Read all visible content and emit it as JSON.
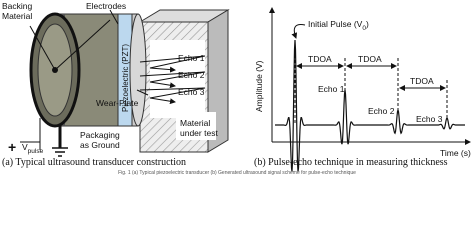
{
  "panel_a": {
    "backing_material": [
      "Backing",
      "Material"
    ],
    "electrodes": "Electrodes",
    "piezoelectric": "Piezoelectric (PZT)",
    "wear_plate": "Wear-Plate",
    "echoes": [
      "Echo 1",
      "Echo 2",
      "Echo 3"
    ],
    "material": [
      "Material",
      "under test"
    ],
    "plus": "+",
    "v_pulse": {
      "symbol": "V",
      "subscript": "pulse"
    },
    "packaging": [
      "Packaging",
      "as Ground"
    ],
    "caption": "(a)  Typical ultrasound transducer construction"
  },
  "panel_b": {
    "initial_pulse": {
      "text": "Initial Pulse (V",
      "subscript": "0",
      "end": ")"
    },
    "y_label": "Amplitude (V)",
    "x_label": "Time (s)",
    "tdoa": [
      "TDOA",
      "TDOA",
      "TDOA"
    ],
    "echoes": [
      "Echo 1",
      "Echo 2",
      "Echo 3"
    ],
    "caption": "(b) Pulse-echo technique in measuring thickness"
  },
  "figure_caption": "Fig. 1 (a) Typical piezoelectric transducer (b) Generated ultrasound signal scheme for pulse-echo technique"
}
